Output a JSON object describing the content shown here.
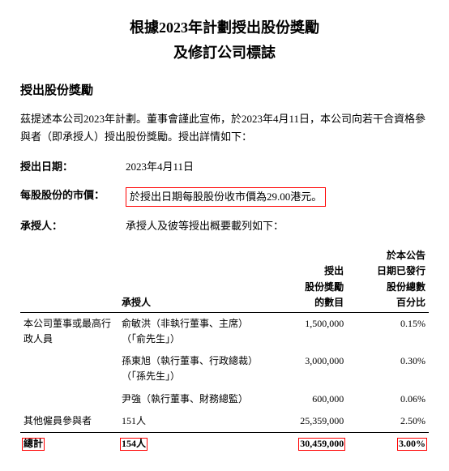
{
  "title_line1": "根據2023年計劃授出股份獎勵",
  "title_line2": "及修訂公司標誌",
  "section_title": "授出股份獎勵",
  "intro": "茲提述本公司2023年計劃。董事會謹此宣佈，於2023年4月11日，本公司向若干合資格參與者（即承授人）授出股份獎勵。授出詳情如下：",
  "grant_date_label": "授出日期：",
  "grant_date_value": "2023年4月11日",
  "price_label": "每股股份的市價：",
  "price_value": "於授出日期每股股份收市價為29.00港元。",
  "grantee_label": "承授人：",
  "grantee_intro": "承授人及彼等授出概要載列如下：",
  "table": {
    "headers": {
      "c1": "",
      "c2": "承授人",
      "c3_l1": "授出",
      "c3_l2": "股份獎勵",
      "c3_l3": "的數目",
      "c4_l1": "於本公告",
      "c4_l2": "日期已發行",
      "c4_l3": "股份總數",
      "c4_l4": "百分比"
    },
    "rows": [
      {
        "cat": "本公司董事或最高行政人員",
        "name": "俞敏洪（非執行董事、主席）（「俞先生」）",
        "shares": "1,500,000",
        "pct": "0.15%"
      },
      {
        "cat": "",
        "name": "孫東旭（執行董事、行政總裁）（「孫先生」）",
        "shares": "3,000,000",
        "pct": "0.30%"
      },
      {
        "cat": "",
        "name": "尹強（執行董事、財務總監）",
        "shares": "600,000",
        "pct": "0.06%"
      },
      {
        "cat": "其他僱員參與者",
        "name": "151人",
        "shares": "25,359,000",
        "pct": "2.50%"
      }
    ],
    "total": {
      "label": "總計",
      "count": "154人",
      "shares": "30,459,000",
      "pct": "3.00%"
    }
  },
  "colors": {
    "text": "#000000",
    "bg": "#ffffff",
    "highlight_border": "#ff0000"
  }
}
